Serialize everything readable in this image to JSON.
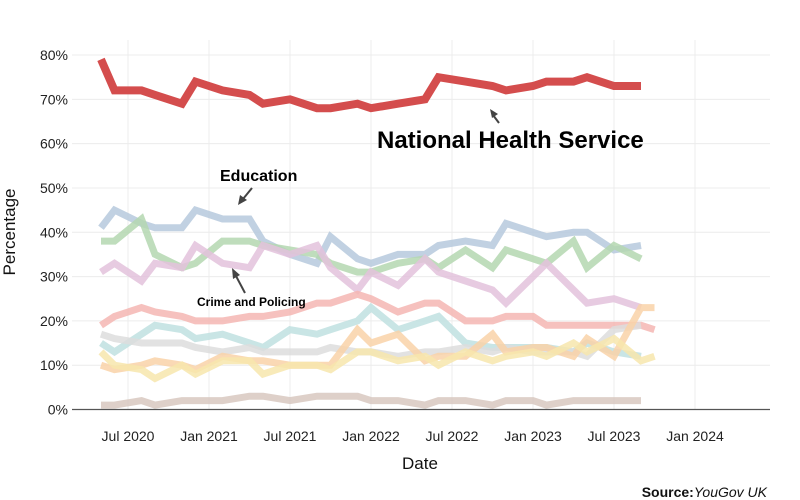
{
  "chart_data": {
    "type": "line",
    "x": [
      "2020-05",
      "2020-06",
      "2020-08",
      "2020-09",
      "2020-11",
      "2020-12",
      "2021-02",
      "2021-03",
      "2021-05",
      "2021-06",
      "2021-08",
      "2021-09",
      "2021-11",
      "2021-12",
      "2022-02",
      "2022-03",
      "2022-05",
      "2022-06",
      "2022-08",
      "2022-09",
      "2022-11",
      "2022-12",
      "2023-02",
      "2023-03",
      "2023-05",
      "2023-06",
      "2023-08",
      "2023-09",
      "2023-11",
      "2023-12",
      "2024-02",
      "2024-03",
      "2024-05"
    ],
    "xlabel": "Date",
    "ylabel": "Percentage",
    "ylim": [
      0,
      80
    ],
    "x_ticks": [
      {
        "date": "2020-07",
        "label": "Jul 2020"
      },
      {
        "date": "2021-01",
        "label": "Jan 2021"
      },
      {
        "date": "2021-07",
        "label": "Jul 2021"
      },
      {
        "date": "2022-01",
        "label": "Jan 2022"
      },
      {
        "date": "2022-07",
        "label": "Jul 2022"
      },
      {
        "date": "2023-01",
        "label": "Jan 2023"
      },
      {
        "date": "2023-07",
        "label": "Jul 2023"
      },
      {
        "date": "2024-01",
        "label": "Jan 2024"
      }
    ],
    "y_ticks": [
      {
        "value": 0,
        "label": "0%"
      },
      {
        "value": 10,
        "label": "10%"
      },
      {
        "value": 20,
        "label": "20%"
      },
      {
        "value": 30,
        "label": "30%"
      },
      {
        "value": 40,
        "label": "40%"
      },
      {
        "value": 50,
        "label": "50%"
      },
      {
        "value": 60,
        "label": "60%"
      },
      {
        "value": 70,
        "label": "70%"
      },
      {
        "value": 80,
        "label": "80%"
      }
    ],
    "grid": true,
    "series": [
      {
        "color": "#b6c9dd",
        "highlight": false,
        "values": [
          41,
          45,
          42,
          41,
          41,
          45,
          43,
          43,
          38,
          35,
          33,
          39,
          34,
          33,
          35,
          35,
          37,
          38,
          37,
          42,
          40,
          39,
          40,
          40,
          36,
          37,
          null,
          null,
          null,
          null,
          null,
          null,
          null
        ]
      },
      {
        "color": "#b4d7b0",
        "highlight": false,
        "values": [
          38,
          38,
          43,
          35,
          32,
          33,
          38,
          38,
          37,
          36,
          35,
          33,
          31,
          31,
          33,
          34,
          32,
          36,
          32,
          36,
          34,
          33,
          38,
          32,
          37,
          34,
          null,
          null,
          null,
          null,
          null,
          null,
          null
        ]
      },
      {
        "color": "#e3c2dc",
        "highlight": false,
        "values": [
          31,
          33,
          29,
          33,
          32,
          37,
          33,
          32,
          37,
          35,
          37,
          32,
          27,
          31,
          28,
          34,
          31,
          29,
          27,
          24,
          30,
          33,
          27,
          24,
          25,
          23,
          null,
          null,
          null,
          null,
          null,
          null,
          null
        ]
      },
      {
        "color": "#f4b6b3",
        "highlight": false,
        "values": [
          19,
          21,
          23,
          22,
          21,
          20,
          20,
          21,
          21,
          22,
          24,
          24,
          26,
          25,
          22,
          24,
          24,
          20,
          20,
          21,
          21,
          19,
          19,
          19,
          19,
          19,
          18,
          null,
          null,
          null,
          null,
          null,
          null
        ]
      },
      {
        "color": "#bfe1e1",
        "highlight": false,
        "values": [
          15,
          13,
          17,
          19,
          18,
          16,
          17,
          15,
          14,
          18,
          17,
          18,
          20,
          23,
          18,
          20,
          21,
          15,
          14,
          14,
          14,
          14,
          13,
          15,
          13,
          12,
          null,
          null,
          null,
          null,
          null,
          null,
          null
        ]
      },
      {
        "color": "#dddddd",
        "highlight": false,
        "values": [
          17,
          16,
          15,
          15,
          15,
          14,
          13,
          14,
          13,
          13,
          13,
          14,
          13,
          13,
          12,
          13,
          13,
          14,
          13,
          14,
          13,
          13,
          13,
          12,
          18,
          19,
          null,
          null,
          null,
          null,
          null,
          null,
          null
        ]
      },
      {
        "color": "#f9d2a8",
        "highlight": false,
        "values": [
          10,
          9,
          10,
          11,
          10,
          9,
          12,
          11,
          11,
          10,
          10,
          10,
          18,
          15,
          17,
          11,
          12,
          12,
          17,
          13,
          14,
          14,
          12,
          16,
          12,
          23,
          23,
          null,
          null,
          null,
          null,
          null,
          null
        ]
      },
      {
        "color": "#f7e6ad",
        "highlight": false,
        "values": [
          13,
          10,
          9,
          7,
          10,
          8,
          11,
          11,
          8,
          10,
          10,
          9,
          13,
          13,
          11,
          12,
          10,
          13,
          11,
          12,
          13,
          12,
          15,
          13,
          16,
          11,
          12,
          null,
          null,
          null,
          null,
          null,
          null
        ]
      },
      {
        "color": "#d8c8bf",
        "highlight": false,
        "values": [
          1,
          1,
          2,
          1,
          2,
          2,
          2,
          3,
          3,
          2,
          3,
          3,
          3,
          2,
          2,
          1,
          2,
          2,
          1,
          2,
          2,
          1,
          2,
          2,
          2,
          2,
          null,
          null,
          null,
          null,
          null,
          null,
          null
        ]
      },
      {
        "name": "National Health Service",
        "color": "#d44d4d",
        "highlight": true,
        "values": [
          79,
          72,
          72,
          71,
          69,
          74,
          72,
          71,
          69,
          70,
          68,
          68,
          69,
          68,
          69,
          70,
          75,
          74,
          73,
          72,
          73,
          74,
          74,
          75,
          73,
          73,
          null,
          null,
          null,
          null,
          null,
          null,
          null
        ]
      }
    ]
  },
  "series_dates": [
    "2020-05",
    "2020-06",
    "2020-08",
    "2020-09",
    "2020-11",
    "2020-12",
    "2021-02",
    "2021-04",
    "2021-05",
    "2021-07",
    "2021-09",
    "2021-10",
    "2021-12",
    "2022-01",
    "2022-03",
    "2022-05",
    "2022-06",
    "2022-08",
    "2022-10",
    "2022-11",
    "2023-01",
    "2023-02",
    "2023-04",
    "2023-05",
    "2023-07",
    "2023-09",
    "2023-10",
    "2023-12",
    "2024-02",
    "2024-03",
    "2024-04",
    "2024-05",
    "2024-06"
  ],
  "annotations": {
    "nhs": "National Health Service",
    "education": "Education",
    "crime": "Crime and Policing"
  },
  "source": {
    "label": "Source:",
    "text": "YouGov UK"
  }
}
